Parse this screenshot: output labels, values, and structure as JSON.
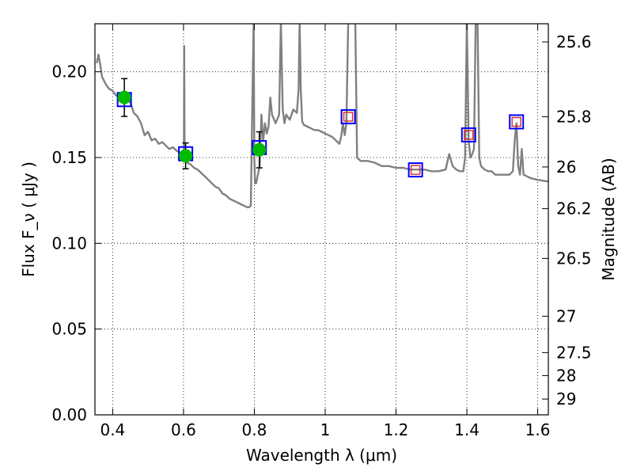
{
  "chart_data": {
    "type": "scatter",
    "xlabel": "Wavelength  λ (μm)",
    "ylabel": "Flux  F_ν  ( μJy )",
    "ylabel_right": "Magnitude (AB)",
    "xlim": [
      0.35,
      1.63
    ],
    "ylim": [
      0.0,
      0.228
    ],
    "grid": true,
    "x_ticks": [
      {
        "value": 0.4,
        "label": "0.4"
      },
      {
        "value": 0.6,
        "label": "0.6"
      },
      {
        "value": 0.8,
        "label": "0.8"
      },
      {
        "value": 1.0,
        "label": "1"
      },
      {
        "value": 1.2,
        "label": "1.2"
      },
      {
        "value": 1.4,
        "label": "1.4"
      },
      {
        "value": 1.6,
        "label": "1.6"
      }
    ],
    "y_ticks": [
      {
        "value": 0.0,
        "label": "0.00"
      },
      {
        "value": 0.05,
        "label": "0.05"
      },
      {
        "value": 0.1,
        "label": "0.10"
      },
      {
        "value": 0.15,
        "label": "0.15"
      },
      {
        "value": 0.2,
        "label": "0.20"
      }
    ],
    "magnitude_ticks": [
      {
        "flux": 0.2174,
        "label": "25.6"
      },
      {
        "flux": 0.1738,
        "label": "25.8"
      },
      {
        "flux": 0.1445,
        "label": "26"
      },
      {
        "flux": 0.1202,
        "label": "26.2"
      },
      {
        "flux": 0.0912,
        "label": "26.5"
      },
      {
        "flux": 0.0575,
        "label": "27"
      },
      {
        "flux": 0.0363,
        "label": "27.5"
      },
      {
        "flux": 0.0229,
        "label": "28"
      },
      {
        "flux": 0.0092,
        "label": "29"
      }
    ],
    "series": [
      {
        "kind": "model-spectrum",
        "color": "#808080",
        "x": [
          0.355,
          0.36,
          0.365,
          0.37,
          0.38,
          0.39,
          0.4,
          0.41,
          0.42,
          0.43,
          0.44,
          0.45,
          0.46,
          0.47,
          0.48,
          0.49,
          0.5,
          0.51,
          0.52,
          0.53,
          0.54,
          0.55,
          0.56,
          0.57,
          0.58,
          0.59,
          0.6,
          0.601,
          0.602,
          0.603,
          0.604,
          0.61,
          0.62,
          0.63,
          0.64,
          0.65,
          0.66,
          0.67,
          0.68,
          0.69,
          0.7,
          0.71,
          0.72,
          0.73,
          0.74,
          0.75,
          0.76,
          0.77,
          0.78,
          0.785,
          0.79,
          0.795,
          0.798,
          0.8,
          0.802,
          0.805,
          0.81,
          0.815,
          0.82,
          0.825,
          0.83,
          0.835,
          0.84,
          0.845,
          0.85,
          0.86,
          0.87,
          0.875,
          0.88,
          0.885,
          0.89,
          0.9,
          0.91,
          0.92,
          0.925,
          0.928,
          0.931,
          0.935,
          0.94,
          0.95,
          0.96,
          0.97,
          0.98,
          0.99,
          1.0,
          1.01,
          1.02,
          1.03,
          1.04,
          1.045,
          1.05,
          1.055,
          1.06,
          1.065,
          1.07,
          1.075,
          1.08,
          1.085,
          1.09,
          1.1,
          1.12,
          1.14,
          1.16,
          1.18,
          1.2,
          1.22,
          1.24,
          1.26,
          1.28,
          1.3,
          1.32,
          1.34,
          1.35,
          1.36,
          1.37,
          1.38,
          1.39,
          1.395,
          1.4,
          1.405,
          1.41,
          1.415,
          1.42,
          1.425,
          1.43,
          1.435,
          1.44,
          1.445,
          1.45,
          1.46,
          1.47,
          1.48,
          1.5,
          1.52,
          1.53,
          1.535,
          1.54,
          1.545,
          1.55,
          1.555,
          1.56,
          1.57,
          1.58,
          1.6,
          1.63
        ],
        "y": [
          0.205,
          0.21,
          0.204,
          0.197,
          0.193,
          0.19,
          0.189,
          0.186,
          0.186,
          0.185,
          0.184,
          0.182,
          0.176,
          0.174,
          0.17,
          0.163,
          0.165,
          0.16,
          0.161,
          0.158,
          0.159,
          0.157,
          0.155,
          0.156,
          0.154,
          0.153,
          0.151,
          0.152,
          0.215,
          0.152,
          0.15,
          0.147,
          0.146,
          0.144,
          0.143,
          0.141,
          0.139,
          0.137,
          0.135,
          0.133,
          0.132,
          0.129,
          0.128,
          0.126,
          0.125,
          0.124,
          0.123,
          0.122,
          0.121,
          0.121,
          0.122,
          0.19,
          0.23,
          0.15,
          0.135,
          0.135,
          0.14,
          0.145,
          0.175,
          0.16,
          0.17,
          0.164,
          0.168,
          0.185,
          0.175,
          0.17,
          0.175,
          0.23,
          0.178,
          0.17,
          0.175,
          0.172,
          0.178,
          0.176,
          0.19,
          0.23,
          0.19,
          0.171,
          0.169,
          0.168,
          0.167,
          0.166,
          0.166,
          0.165,
          0.164,
          0.163,
          0.162,
          0.16,
          0.158,
          0.162,
          0.17,
          0.163,
          0.17,
          0.23,
          0.23,
          0.23,
          0.23,
          0.23,
          0.15,
          0.148,
          0.148,
          0.147,
          0.145,
          0.145,
          0.144,
          0.144,
          0.143,
          0.143,
          0.143,
          0.142,
          0.142,
          0.143,
          0.152,
          0.145,
          0.143,
          0.142,
          0.142,
          0.15,
          0.23,
          0.16,
          0.15,
          0.152,
          0.155,
          0.23,
          0.23,
          0.15,
          0.145,
          0.144,
          0.143,
          0.142,
          0.142,
          0.14,
          0.14,
          0.14,
          0.142,
          0.16,
          0.17,
          0.145,
          0.14,
          0.155,
          0.14,
          0.139,
          0.138,
          0.137,
          0.136
        ]
      },
      {
        "kind": "observed",
        "marker": "circle",
        "color": "#00bb00",
        "points": [
          {
            "x": 0.433,
            "y": 0.185,
            "err": 0.011
          },
          {
            "x": 0.606,
            "y": 0.151,
            "err": 0.0075
          },
          {
            "x": 0.814,
            "y": 0.1545,
            "err": 0.0105
          }
        ]
      },
      {
        "kind": "model-bandpass",
        "marker": "square",
        "color": "#0000ff",
        "points": [
          {
            "x": 0.433,
            "y": 0.1838
          },
          {
            "x": 0.606,
            "y": 0.1522
          },
          {
            "x": 0.814,
            "y": 0.1558
          },
          {
            "x": 1.065,
            "y": 0.1738
          },
          {
            "x": 1.255,
            "y": 0.1428
          },
          {
            "x": 1.405,
            "y": 0.1632
          },
          {
            "x": 1.54,
            "y": 0.1708
          }
        ]
      },
      {
        "kind": "upper-limit",
        "marker": "square",
        "color": "#dd3333",
        "points": [
          {
            "x": 1.065,
            "y": 0.1738
          },
          {
            "x": 1.255,
            "y": 0.1428
          },
          {
            "x": 1.405,
            "y": 0.1632
          },
          {
            "x": 1.54,
            "y": 0.1708
          }
        ]
      }
    ]
  }
}
